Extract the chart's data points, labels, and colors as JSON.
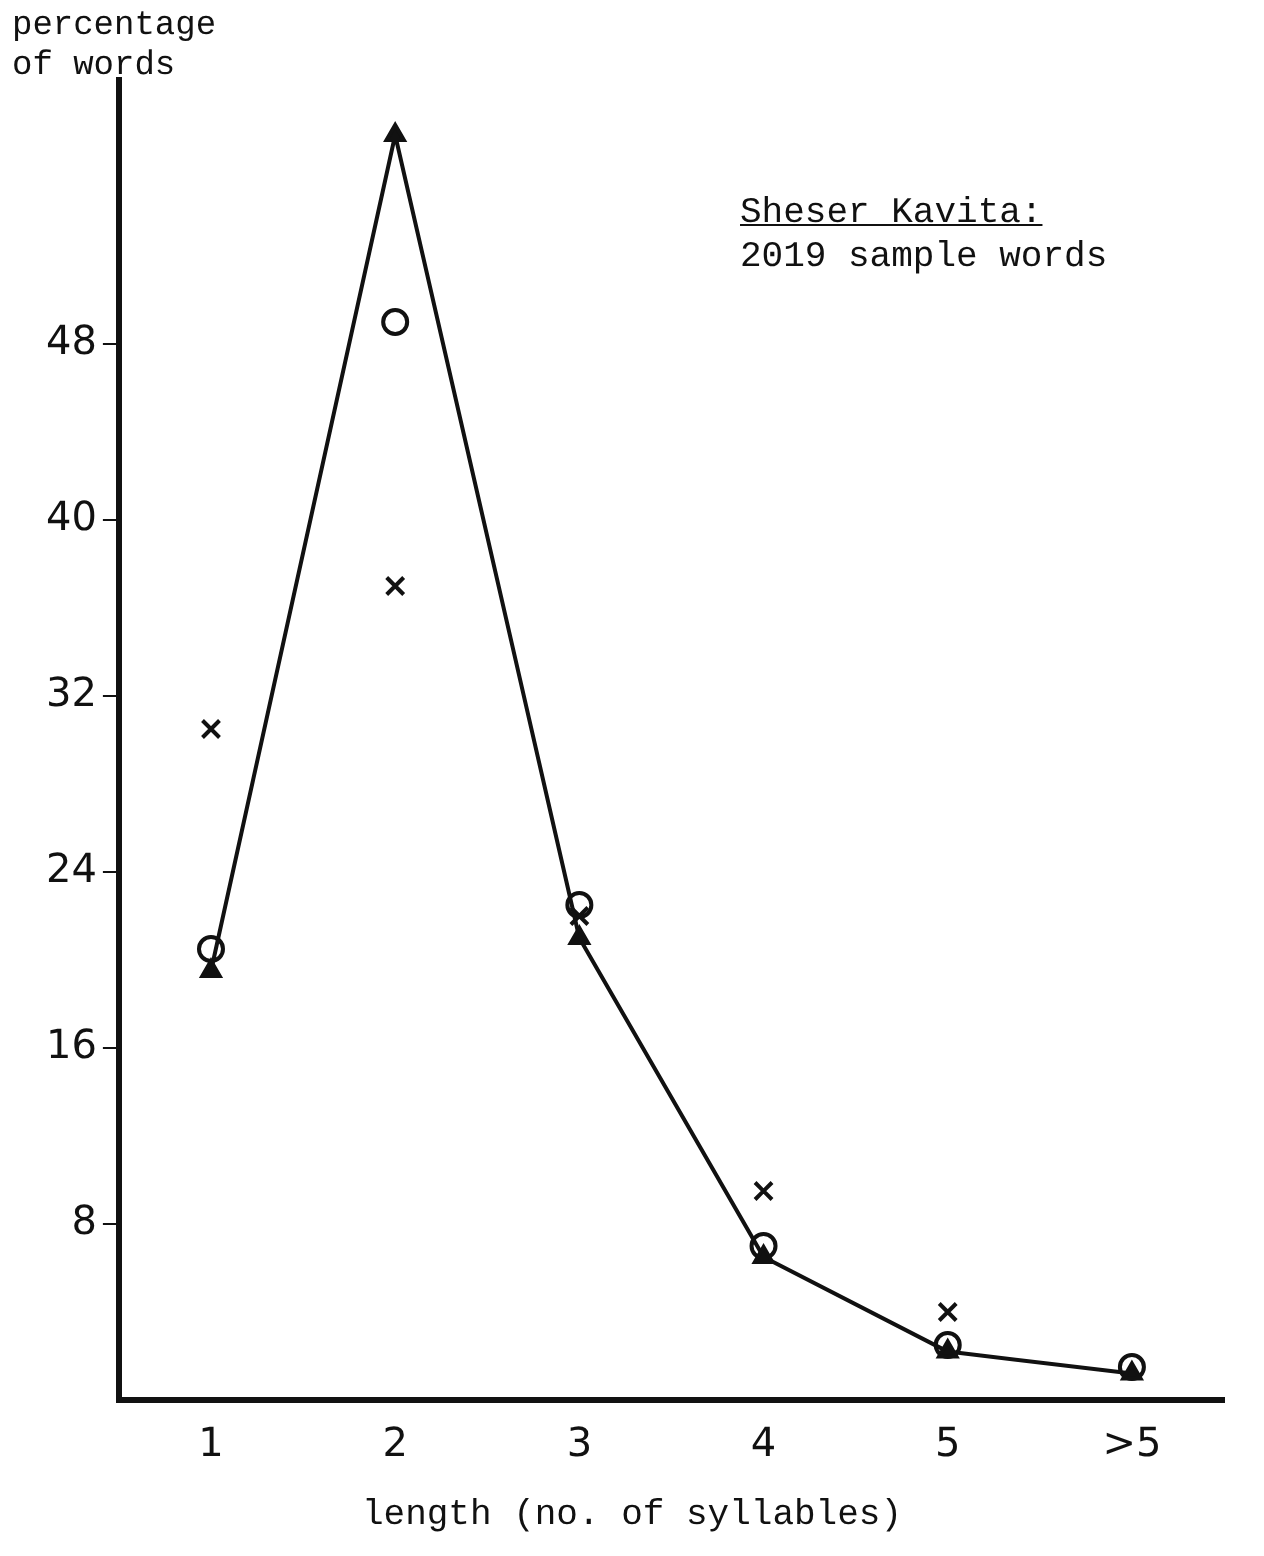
{
  "chart_data": {
    "type": "line",
    "ylabel": "percentage of words",
    "xlabel": "length (no. of syllables)",
    "categories": [
      "1",
      "2",
      "3",
      "4",
      "5",
      ">5"
    ],
    "ylim": [
      0,
      60
    ],
    "yticks": [
      8,
      16,
      24,
      32,
      40,
      48
    ],
    "grid": false,
    "legend": false,
    "annotations": [
      "Sheser Kavita:",
      "2019 sample words"
    ],
    "series": [
      {
        "color": "#111111",
        "marker": "triangle",
        "values": [
          19.5,
          57.5,
          21,
          6.5,
          2.2,
          1.2
        ]
      },
      {
        "type": "scatter",
        "color": "#111111",
        "marker": "circle",
        "values": [
          20.5,
          49,
          22.5,
          7,
          2.5,
          1.5
        ]
      },
      {
        "type": "scatter",
        "color": "#111111",
        "marker": "cross",
        "values": [
          30.5,
          37,
          22,
          9.5,
          4,
          null
        ]
      }
    ]
  }
}
